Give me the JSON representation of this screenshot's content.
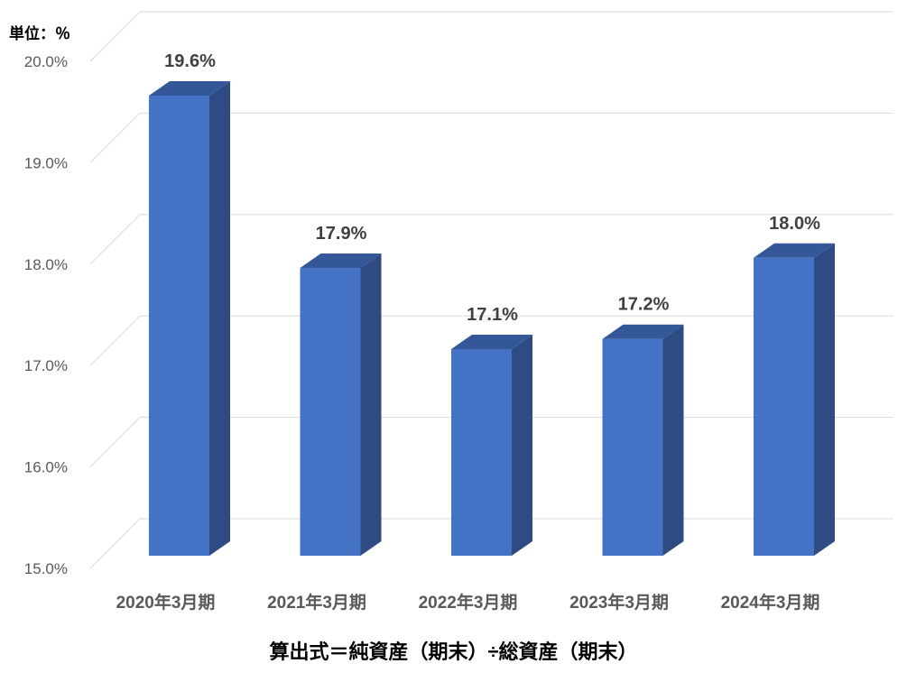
{
  "unit_label": "単位：％",
  "formula": "算出式＝純資産（期末）÷総資産（期末）",
  "colors": {
    "bar_front": "#4472C4",
    "bar_side": "#2F4B84",
    "bar_top": "#34579A",
    "grid": "#D9D9D9",
    "tick_text": "#595959",
    "label_text": "#404040"
  },
  "chart_data": {
    "type": "bar",
    "title": "",
    "xlabel": "",
    "ylabel": "",
    "categories": [
      "2020年3月期",
      "2021年3月期",
      "2022年3月期",
      "2023年3月期",
      "2024年3月期"
    ],
    "values": [
      19.6,
      17.9,
      17.1,
      17.2,
      18.0
    ],
    "value_labels": [
      "19.6%",
      "17.9%",
      "17.1%",
      "17.2%",
      "18.0%"
    ],
    "ylim": [
      15.0,
      20.0
    ],
    "yticks": [
      15.0,
      16.0,
      17.0,
      18.0,
      19.0,
      20.0
    ],
    "ytick_labels": [
      "15.0%",
      "16.0%",
      "17.0%",
      "18.0%",
      "19.0%",
      "20.0%"
    ],
    "grid": true,
    "legend": "none",
    "style": "3d-column"
  }
}
